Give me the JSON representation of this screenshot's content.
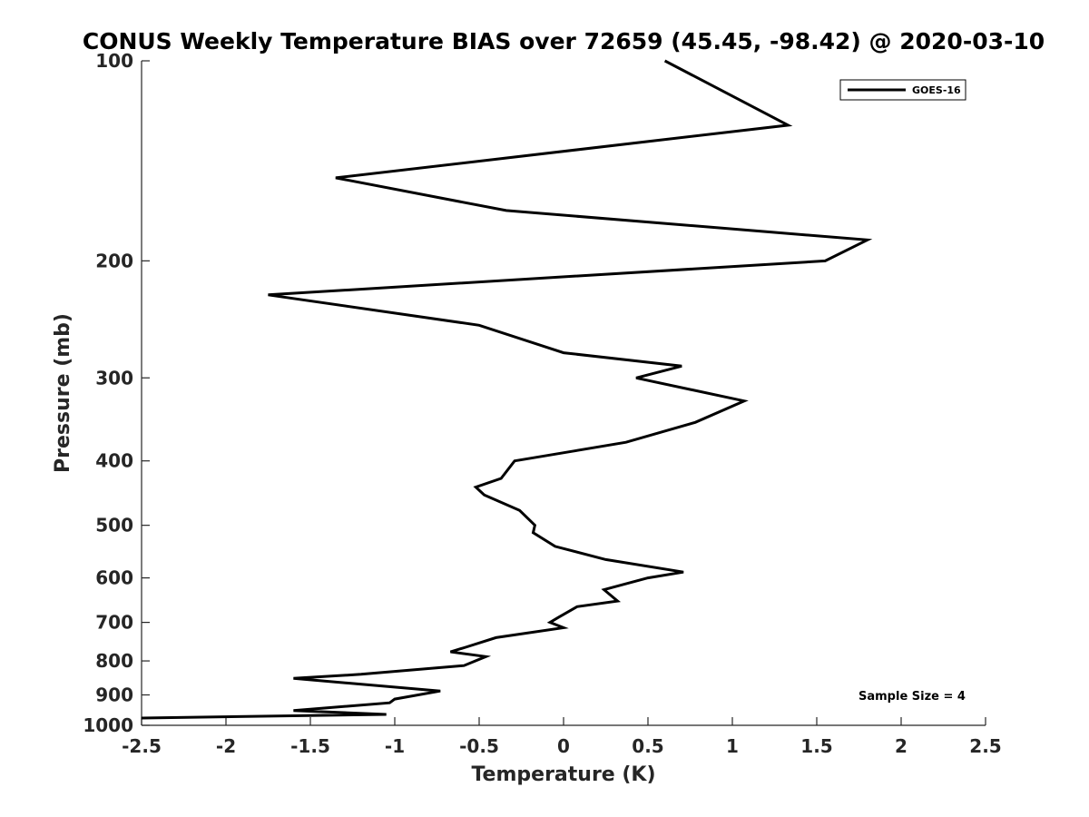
{
  "chart_data": {
    "type": "line",
    "title": "CONUS Weekly Temperature BIAS over 72659 (45.45, -98.42) @ 2020-03-10",
    "xlabel": "Temperature (K)",
    "ylabel": "Pressure (mb)",
    "xlim": [
      -2.5,
      2.5
    ],
    "ylim": [
      100,
      1000
    ],
    "y_scale": "log",
    "y_reversed": true,
    "grid": false,
    "legend_position": "top-right",
    "x_ticks": [
      "-2.5",
      "-2",
      "-1.5",
      "-1",
      "-0.5",
      "0",
      "0.5",
      "1",
      "1.5",
      "2",
      "2.5"
    ],
    "y_ticks": [
      "100",
      "200",
      "300",
      "400",
      "500",
      "600",
      "700",
      "800",
      "900",
      "1000"
    ],
    "series": [
      {
        "name": "GOES-16",
        "color": "#000000",
        "points": [
          {
            "x": 0.6,
            "y": 100
          },
          {
            "x": 1.33,
            "y": 125
          },
          {
            "x": -1.35,
            "y": 150
          },
          {
            "x": -0.34,
            "y": 168
          },
          {
            "x": 1.8,
            "y": 186
          },
          {
            "x": 1.55,
            "y": 200
          },
          {
            "x": -1.75,
            "y": 225
          },
          {
            "x": -0.5,
            "y": 250
          },
          {
            "x": 0.0,
            "y": 275
          },
          {
            "x": 0.7,
            "y": 288
          },
          {
            "x": 0.43,
            "y": 300
          },
          {
            "x": 1.07,
            "y": 325
          },
          {
            "x": 0.78,
            "y": 350
          },
          {
            "x": 0.37,
            "y": 375
          },
          {
            "x": 0.05,
            "y": 387
          },
          {
            "x": -0.29,
            "y": 400
          },
          {
            "x": -0.37,
            "y": 425
          },
          {
            "x": -0.52,
            "y": 438
          },
          {
            "x": -0.47,
            "y": 450
          },
          {
            "x": -0.26,
            "y": 475
          },
          {
            "x": -0.17,
            "y": 500
          },
          {
            "x": -0.18,
            "y": 513
          },
          {
            "x": -0.05,
            "y": 538
          },
          {
            "x": 0.25,
            "y": 563
          },
          {
            "x": 0.71,
            "y": 588
          },
          {
            "x": 0.5,
            "y": 600
          },
          {
            "x": 0.24,
            "y": 625
          },
          {
            "x": 0.32,
            "y": 650
          },
          {
            "x": 0.08,
            "y": 663
          },
          {
            "x": -0.03,
            "y": 688
          },
          {
            "x": -0.08,
            "y": 700
          },
          {
            "x": 0.0,
            "y": 713
          },
          {
            "x": -0.4,
            "y": 738
          },
          {
            "x": -0.58,
            "y": 763
          },
          {
            "x": -0.67,
            "y": 775
          },
          {
            "x": -0.46,
            "y": 788
          },
          {
            "x": -0.59,
            "y": 813
          },
          {
            "x": -1.2,
            "y": 838
          },
          {
            "x": -1.6,
            "y": 850
          },
          {
            "x": -0.73,
            "y": 888
          },
          {
            "x": -1.0,
            "y": 913
          },
          {
            "x": -1.03,
            "y": 925
          },
          {
            "x": -1.6,
            "y": 950
          },
          {
            "x": -1.05,
            "y": 963
          },
          {
            "x": -2.5,
            "y": 975
          }
        ]
      }
    ],
    "annotations": [
      "Sample Size = 4"
    ]
  }
}
